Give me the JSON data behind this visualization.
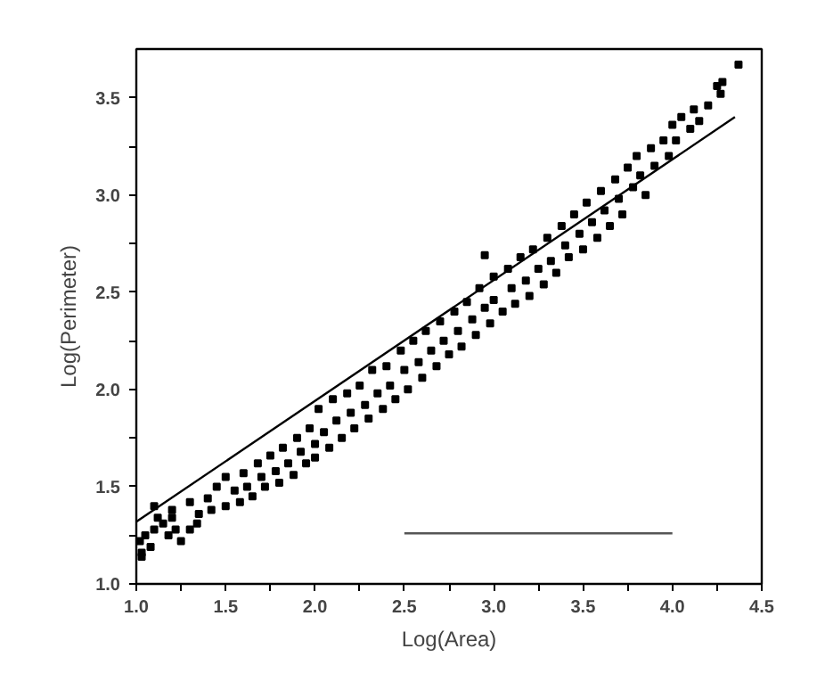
{
  "chart_data": {
    "type": "scatter",
    "xlabel": "Log(Area)",
    "ylabel": "Log(Perimeter)",
    "xlim": [
      1.0,
      4.5
    ],
    "ylim": [
      1.0,
      3.75
    ],
    "xticks": [
      {
        "value": 1.0,
        "label": "1.0"
      },
      {
        "value": 1.25,
        "label": null
      },
      {
        "value": 1.5,
        "label": "1.5"
      },
      {
        "value": 1.75,
        "label": null
      },
      {
        "value": 2.0,
        "label": "2.0"
      },
      {
        "value": 2.25,
        "label": null
      },
      {
        "value": 2.5,
        "label": "2.5"
      },
      {
        "value": 2.75,
        "label": null
      },
      {
        "value": 3.0,
        "label": "3.0"
      },
      {
        "value": 3.25,
        "label": null
      },
      {
        "value": 3.5,
        "label": "3.5"
      },
      {
        "value": 3.75,
        "label": null
      },
      {
        "value": 4.0,
        "label": "4.0"
      },
      {
        "value": 4.25,
        "label": null
      },
      {
        "value": 4.5,
        "label": "4.5"
      }
    ],
    "yticks": [
      {
        "value": 1.0,
        "label": "1.0"
      },
      {
        "value": 1.25,
        "label": null
      },
      {
        "value": 1.5,
        "label": "1.5"
      },
      {
        "value": 1.75,
        "label": null
      },
      {
        "value": 2.0,
        "label": "2.0"
      },
      {
        "value": 2.25,
        "label": null
      },
      {
        "value": 2.5,
        "label": "2.5"
      },
      {
        "value": 2.75,
        "label": null
      },
      {
        "value": 3.0,
        "label": "3.0"
      },
      {
        "value": 3.25,
        "label": null
      },
      {
        "value": 3.5,
        "label": "3.5"
      }
    ],
    "grid": false,
    "marker": "square",
    "series": [
      {
        "color": "#000000",
        "x": [
          1.02,
          1.05,
          1.1,
          1.15,
          1.2,
          1.25,
          1.3,
          1.34,
          1.03,
          1.08,
          1.12,
          1.18,
          1.22,
          1.03,
          1.1,
          1.2,
          1.3,
          1.35,
          1.4,
          1.42,
          1.45,
          1.5,
          1.5,
          1.55,
          1.58,
          1.6,
          1.62,
          1.65,
          1.68,
          1.7,
          1.72,
          1.75,
          1.78,
          1.8,
          1.82,
          1.85,
          1.88,
          1.9,
          1.92,
          1.95,
          1.97,
          2.0,
          2.0,
          2.02,
          2.05,
          2.08,
          2.1,
          2.12,
          2.15,
          2.18,
          2.2,
          2.22,
          2.25,
          2.28,
          2.3,
          2.32,
          2.35,
          2.38,
          2.4,
          2.42,
          2.45,
          2.48,
          2.5,
          2.52,
          2.55,
          2.58,
          2.6,
          2.62,
          2.65,
          2.68,
          2.7,
          2.72,
          2.75,
          2.78,
          2.8,
          2.82,
          2.85,
          2.88,
          2.9,
          2.92,
          2.95,
          2.95,
          2.98,
          3.0,
          3.0,
          3.05,
          3.08,
          3.1,
          3.12,
          3.15,
          3.18,
          3.2,
          3.22,
          3.25,
          3.28,
          3.3,
          3.32,
          3.35,
          3.38,
          3.4,
          3.42,
          3.45,
          3.48,
          3.5,
          3.52,
          3.55,
          3.58,
          3.6,
          3.62,
          3.65,
          3.68,
          3.7,
          3.72,
          3.75,
          3.78,
          3.8,
          3.82,
          3.85,
          3.88,
          3.9,
          3.95,
          3.98,
          4.0,
          4.02,
          4.05,
          4.1,
          4.12,
          4.15,
          4.2,
          4.25,
          4.27,
          4.28,
          4.37
        ],
        "values": [
          1.22,
          1.25,
          1.28,
          1.31,
          1.34,
          1.22,
          1.28,
          1.31,
          1.16,
          1.19,
          1.34,
          1.25,
          1.28,
          1.14,
          1.4,
          1.38,
          1.42,
          1.36,
          1.44,
          1.38,
          1.5,
          1.4,
          1.55,
          1.48,
          1.42,
          1.57,
          1.5,
          1.45,
          1.62,
          1.55,
          1.5,
          1.66,
          1.58,
          1.52,
          1.7,
          1.62,
          1.56,
          1.75,
          1.68,
          1.62,
          1.8,
          1.72,
          1.65,
          1.9,
          1.78,
          1.7,
          1.95,
          1.84,
          1.75,
          1.98,
          1.88,
          1.8,
          2.02,
          1.92,
          1.85,
          2.1,
          1.98,
          1.9,
          2.12,
          2.02,
          1.95,
          2.2,
          2.1,
          2.0,
          2.25,
          2.14,
          2.06,
          2.3,
          2.2,
          2.12,
          2.35,
          2.25,
          2.18,
          2.4,
          2.3,
          2.22,
          2.45,
          2.36,
          2.28,
          2.52,
          2.42,
          2.69,
          2.34,
          2.58,
          2.46,
          2.4,
          2.62,
          2.52,
          2.44,
          2.68,
          2.56,
          2.48,
          2.72,
          2.62,
          2.54,
          2.78,
          2.66,
          2.6,
          2.84,
          2.74,
          2.68,
          2.9,
          2.8,
          2.72,
          2.96,
          2.86,
          2.78,
          3.02,
          2.92,
          2.84,
          3.08,
          2.98,
          2.9,
          3.14,
          3.04,
          3.2,
          3.1,
          3.0,
          3.24,
          3.15,
          3.28,
          3.2,
          3.36,
          3.28,
          3.4,
          3.34,
          3.44,
          3.38,
          3.46,
          3.56,
          3.52,
          3.58,
          3.67
        ]
      },
      {
        "type": "line",
        "color": "#000000",
        "marker": "none",
        "x": [
          1.0,
          4.35
        ],
        "values": [
          1.32,
          3.4
        ]
      },
      {
        "type": "line",
        "color": "#555555",
        "marker": "none",
        "x": [
          2.5,
          4.0
        ],
        "values": [
          1.26,
          1.26
        ]
      }
    ]
  }
}
